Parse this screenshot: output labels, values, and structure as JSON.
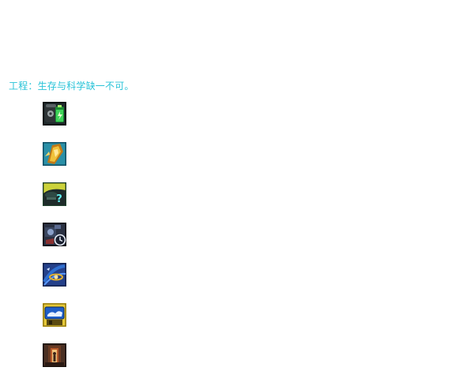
{
  "description": "工程：生存与科学缺一不可。",
  "icons": [
    {
      "name": "battery-canister-icon",
      "colors": [
        "#0e1a1a",
        "#1f2a2c",
        "#3fd35a",
        "#a7f46a"
      ]
    },
    {
      "name": "golden-shield-blade-icon",
      "colors": [
        "#0f5d7a",
        "#2a90a8",
        "#f0c23a",
        "#c07a18"
      ]
    },
    {
      "name": "mystery-device-question-icon",
      "colors": [
        "#1a4b3a",
        "#cbd23a",
        "#1e2b2a",
        "#5ff0f0"
      ]
    },
    {
      "name": "machine-timer-clock-icon",
      "colors": [
        "#141820",
        "#3a4660",
        "#8aa0c8",
        "#e8eef8"
      ]
    },
    {
      "name": "swirl-orbit-icon",
      "colors": [
        "#1a2f6a",
        "#2f6fd0",
        "#e0b030",
        "#f4e2a0"
      ]
    },
    {
      "name": "monitor-display-icon",
      "colors": [
        "#d4b21c",
        "#1f5fc8",
        "#e8f2ff",
        "#5a4a10"
      ]
    },
    {
      "name": "doorway-figure-icon",
      "colors": [
        "#2a1a14",
        "#b85a2a",
        "#f2c27a",
        "#4a2f22"
      ]
    }
  ]
}
